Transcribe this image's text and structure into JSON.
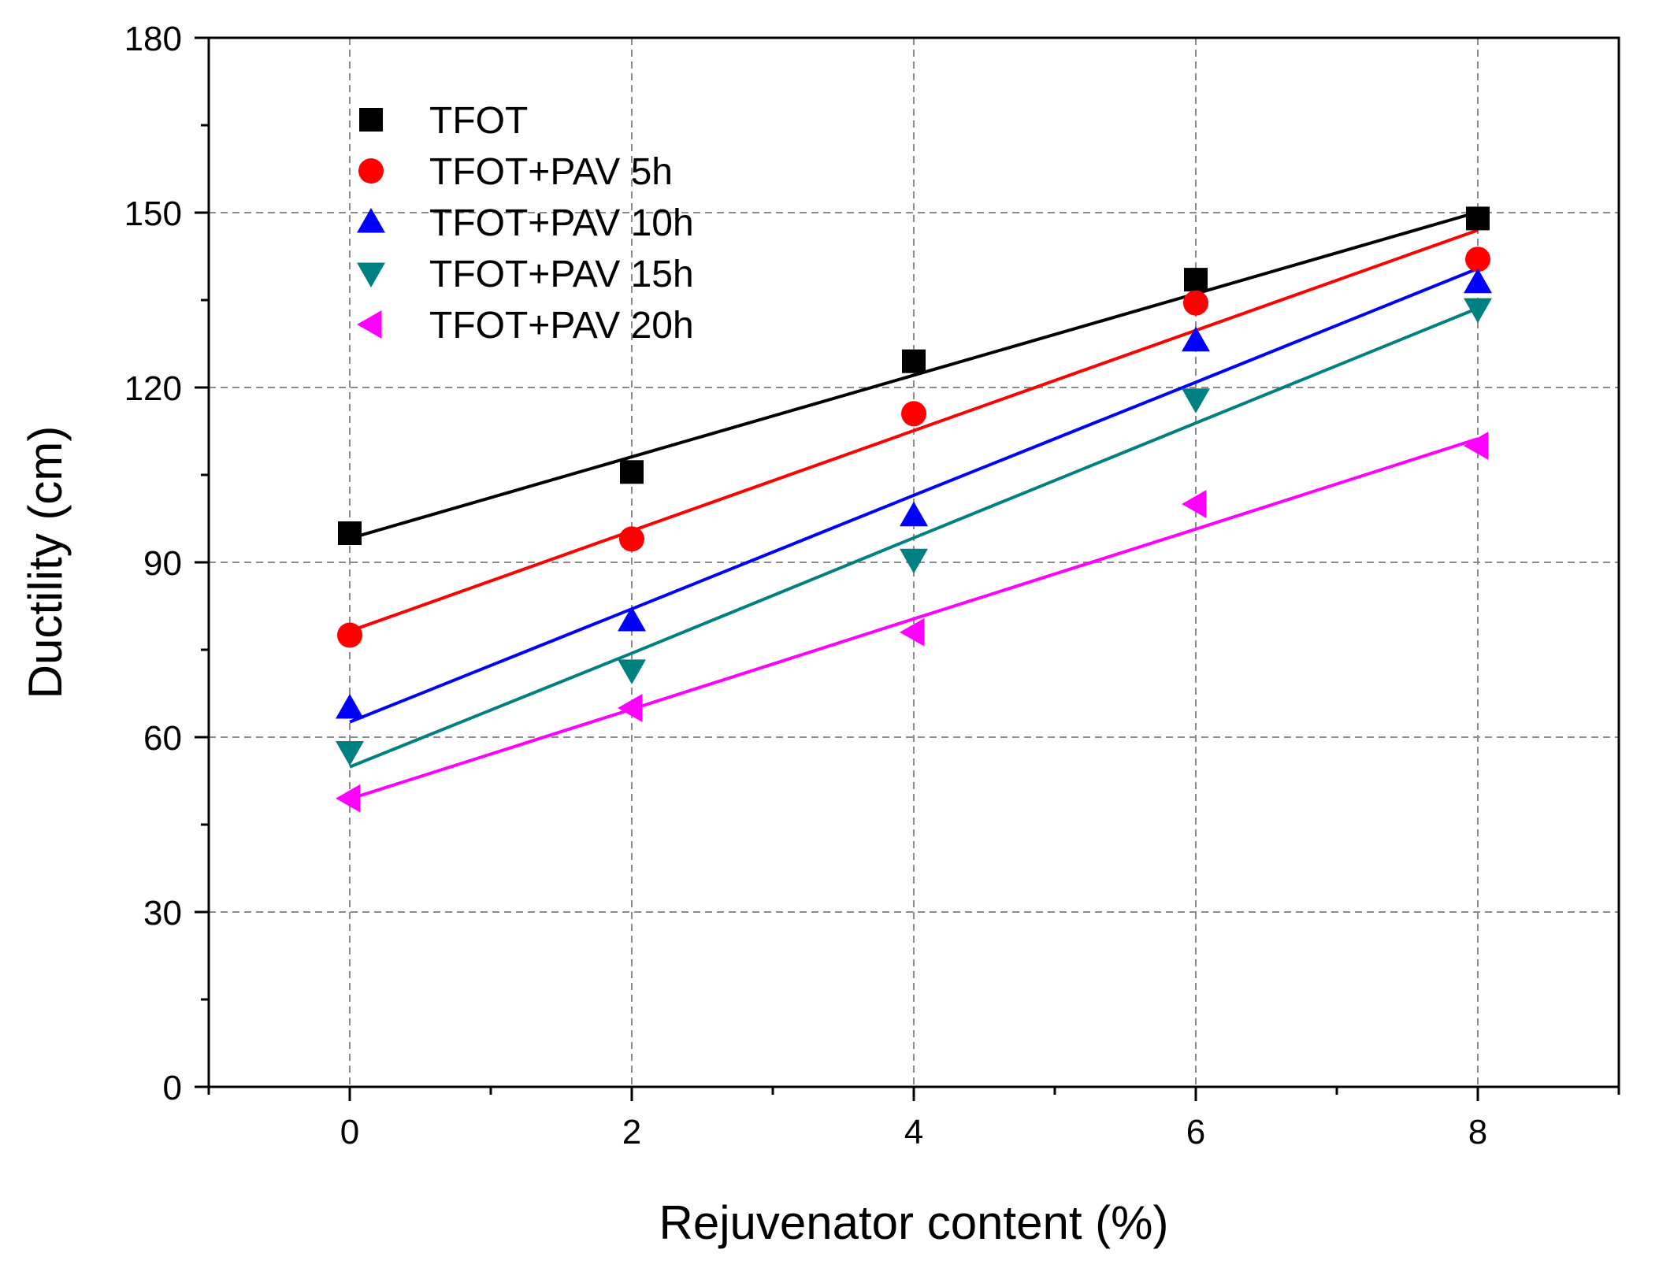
{
  "chart_data": {
    "type": "scatter",
    "xlabel": "Rejuvenator content (%)",
    "ylabel": "Ductility (cm)",
    "xlim": [
      -1,
      9
    ],
    "ylim": [
      0,
      180
    ],
    "xticks": [
      0,
      2,
      4,
      6,
      8
    ],
    "yticks": [
      0,
      30,
      60,
      90,
      120,
      150,
      180
    ],
    "grid": true,
    "legend_position": "top-left",
    "x": [
      0,
      2,
      4,
      6,
      8
    ],
    "series": [
      {
        "name": "TFOT",
        "marker": "square",
        "color": "#000000",
        "values": [
          95,
          105.5,
          124.5,
          138.5,
          149
        ],
        "fit": [
          94.1,
          108.1,
          122.1,
          136.1,
          150.1
        ]
      },
      {
        "name": "TFOT+PAV 5h",
        "marker": "circle",
        "color": "#ff0000",
        "values": [
          77.5,
          94,
          115.5,
          134.5,
          142
        ],
        "fit": [
          78.2,
          95.4,
          112.6,
          129.8,
          147.0
        ]
      },
      {
        "name": "TFOT+PAV 10h",
        "marker": "triangle-up",
        "color": "#0000ff",
        "values": [
          65,
          80,
          98,
          128,
          138
        ],
        "fit": [
          62.6,
          82.0,
          101.5,
          120.9,
          140.4
        ]
      },
      {
        "name": "TFOT+PAV 15h",
        "marker": "triangle-down",
        "color": "#008080",
        "values": [
          57.5,
          71.5,
          90.5,
          118,
          133.5
        ],
        "fit": [
          54.9,
          74.4,
          94.2,
          113.9,
          133.6
        ]
      },
      {
        "name": "TFOT+PAV 20h",
        "marker": "triangle-left",
        "color": "#ff00ff",
        "values": [
          49.5,
          65,
          78,
          100,
          110
        ],
        "fit": [
          49.4,
          64.8,
          80.3,
          95.7,
          111.2
        ]
      }
    ]
  }
}
